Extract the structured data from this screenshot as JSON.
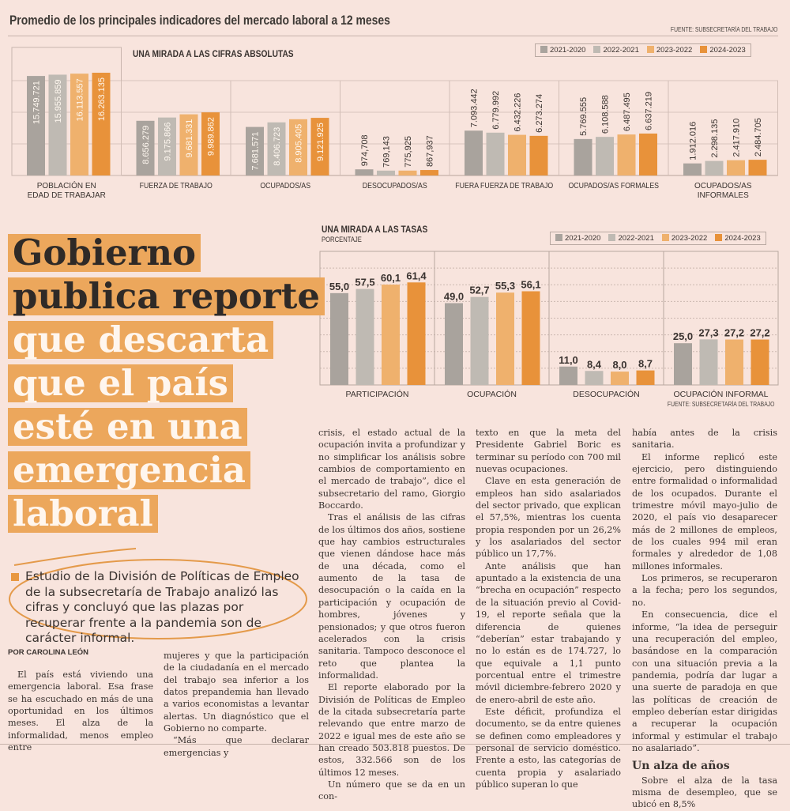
{
  "header": {
    "title": "Promedio de los principales indicadores del mercado laboral a 12 meses",
    "source": "FUENTE: SUBSECRETARÍA DEL TRABAJO"
  },
  "colors": {
    "2021-2020": "#a9a39d",
    "2022-2021": "#bfbab3",
    "2023-2022": "#efb16d",
    "2024-2023": "#e8923a",
    "headline_bg": "#eca75c",
    "background": "#f8e4dd"
  },
  "chart_data": [
    {
      "type": "bar",
      "title": "UNA MIRADA A LAS CIFRAS ABSOLUTAS",
      "xlabel": "",
      "ylabel": "",
      "legend": [
        "2021-2020",
        "2022-2021",
        "2023-2022",
        "2024-2023"
      ],
      "legend_placement": "top-right",
      "categories": [
        "POBLACIÓN EN EDAD DE TRABAJAR",
        "FUERZA DE TRABAJO",
        "OCUPADOS/AS",
        "DESOCUPADOS/AS",
        "FUERA FUERZA DE TRABAJO",
        "OCUPADOS/AS FORMALES",
        "OCUPADOS/AS INFORMALES"
      ],
      "series": [
        {
          "name": "2021-2020",
          "values": [
            15749721,
            8656279,
            7681571,
            974708,
            7093442,
            5769555,
            1912016
          ],
          "labels": [
            "15.749.721",
            "8.656.279",
            "7.681.571",
            "974,708",
            "7.093.442",
            "5.769.555",
            "1.912.016"
          ]
        },
        {
          "name": "2022-2021",
          "values": [
            15955859,
            9175866,
            8406723,
            769143,
            6779992,
            6108588,
            2298135
          ],
          "labels": [
            "15.955.859",
            "9.175.866",
            "8.406.723",
            "769,143",
            "6.779.992",
            "6.108.588",
            "2.298.135"
          ]
        },
        {
          "name": "2023-2022",
          "values": [
            16113557,
            9681331,
            8905405,
            775925,
            6432226,
            6487495,
            2417910
          ],
          "labels": [
            "16.113.557",
            "9.681.331",
            "8.905.405",
            "775,925",
            "6.432.226",
            "6.487.495",
            "2.417.910"
          ]
        },
        {
          "name": "2024-2023",
          "values": [
            16263135,
            9989862,
            9121925,
            867937,
            6273274,
            6637219,
            2484705
          ],
          "labels": [
            "16.263.135",
            "9.989.862",
            "9.121.925",
            "867,937",
            "6.273.274",
            "6.637.219",
            "2.484.705"
          ]
        }
      ],
      "ylim": [
        0,
        18000000
      ],
      "grid": true
    },
    {
      "type": "bar",
      "title": "UNA MIRADA A LAS TASAS",
      "subtitle": "PORCENTAJE",
      "xlabel": "",
      "ylabel": "",
      "legend": [
        "2021-2020",
        "2022-2021",
        "2023-2022",
        "2024-2023"
      ],
      "legend_placement": "top-right",
      "categories": [
        "PARTICIPACIÓN",
        "OCUPACIÓN",
        "DESOCUPACIÓN",
        "OCUPACIÓN INFORMAL"
      ],
      "series": [
        {
          "name": "2021-2020",
          "values": [
            55.0,
            49.0,
            11.0,
            25.0
          ],
          "labels": [
            "55,0",
            "49,0",
            "11,0",
            "25,0"
          ]
        },
        {
          "name": "2022-2021",
          "values": [
            57.5,
            52.7,
            8.4,
            27.3
          ],
          "labels": [
            "57,5",
            "52,7",
            "8,4",
            "27,3"
          ]
        },
        {
          "name": "2023-2022",
          "values": [
            60.1,
            55.3,
            8.0,
            27.2
          ],
          "labels": [
            "60,1",
            "55,3",
            "8,0",
            "27,2"
          ]
        },
        {
          "name": "2024-2023",
          "values": [
            61.4,
            56.1,
            8.7,
            27.2
          ],
          "labels": [
            "61,4",
            "56,1",
            "8,7",
            "27,2"
          ]
        }
      ],
      "ylim": [
        0,
        80
      ],
      "grid": true,
      "source": "FUENTE: SUBSECRETARÍA DEL TRABAJO"
    }
  ],
  "headline": {
    "lines": [
      "Gobierno",
      "publica reporte",
      "que descarta",
      "que el país",
      "esté en una",
      "emergencia",
      "laboral"
    ]
  },
  "lead": "Estudio de la División de Políticas de Empleo de la subsecretaría de Trabajo analizó las cifras y concluyó que las plazas por recuperar frente a la pandemia son de carácter informal.",
  "byline": "POR CAROLINA LEÓN",
  "columns": [
    [
      {
        "text": "El país está viviendo una emergencia laboral. Esa frase se ha escuchado en más de una oportunidad en los últimos meses. El alza de la informalidad, menos empleo entre"
      }
    ],
    [
      {
        "cont": true,
        "text": "mujeres y que la participación de la ciudadanía en el mercado del trabajo sea inferior a los datos prepandemia han llevado a varios economistas a levantar alertas. Un diagnóstico que el Gobierno no comparte."
      },
      {
        "text": "“Más que declarar emergencias y"
      }
    ],
    [
      {
        "cont": true,
        "text": "crisis, el estado actual de la ocupación invita a profundizar y no simplificar los análisis sobre cambios de comportamiento en el mercado de trabajo”, dice el subsecretario del ramo, Giorgio Boccardo."
      },
      {
        "text": "Tras el análisis de las cifras de los últimos dos años, sostiene que hay cambios estructurales que vienen dándose hace más de una década, como el aumento de la tasa de desocupación o la caída en la participación y ocupación de hombres, jóvenes y pensionados; y que otros fueron acelerados con la crisis sanitaria. Tampoco desconoce el reto que plantea la informalidad."
      },
      {
        "text": "El reporte elaborado por la División de Políticas de Empleo de la citada subsecretaría parte relevando que entre marzo de 2022 e igual mes de este año se han creado 503.818 puestos. De estos, 332.566 son de los últimos 12 meses."
      },
      {
        "text": "Un número que se da en un con-"
      }
    ],
    [
      {
        "cont": true,
        "text": "texto en que la meta del Presidente Gabriel Boric es terminar su período con 700 mil nuevas ocupaciones."
      },
      {
        "text": "Clave en esta generación de empleos han sido asalariados del sector privado, que explican el 57,5%, mientras los cuenta propia responden por un 26,2% y los asalariados del sector público un 17,7%."
      },
      {
        "text": "Ante análisis que han apuntado a la existencia de una “brecha en ocupación” respecto de la situación previo al Covid-19, el reporte señala que la diferencia de quienes “deberían” estar trabajando y no lo están es de 174.727, lo que equivale a 1,1 punto porcentual entre el trimestre móvil diciembre-febrero 2020 y de enero-abril de este año."
      },
      {
        "text": "Este déficit, profundiza el documento, se da entre quienes se definen como empleadores y personal de servicio doméstico. Frente a esto, las categorías de cuenta propia y asalariado público superan lo que"
      }
    ],
    [
      {
        "cont": true,
        "text": "había antes de la crisis sanitaria."
      },
      {
        "text": "El informe replicó este ejercicio, pero distinguiendo entre formalidad o informalidad de los ocupados. Durante el trimestre móvil mayo-julio de 2020, el país vio desaparecer más de 2 millones de empleos, de los cuales 994 mil eran formales y alrededor de 1,08 millones informales."
      },
      {
        "text": "Los primeros, se recuperaron a la fecha; pero los segundos, no."
      },
      {
        "text": "En consecuencia, dice el informe, “la idea de perseguir una recuperación del empleo, basándose en la comparación con una situación previa a la pandemia, podría dar lugar a una suerte de paradoja en que las políticas de creación de empleo deberían estar dirigidas a recuperar la ocupación informal y estimular el trabajo no asalariado”."
      },
      {
        "heading": "Un alza de años"
      },
      {
        "text": "Sobre el alza de la tasa misma de desempleo, que se ubicó en 8,5%"
      }
    ]
  ]
}
